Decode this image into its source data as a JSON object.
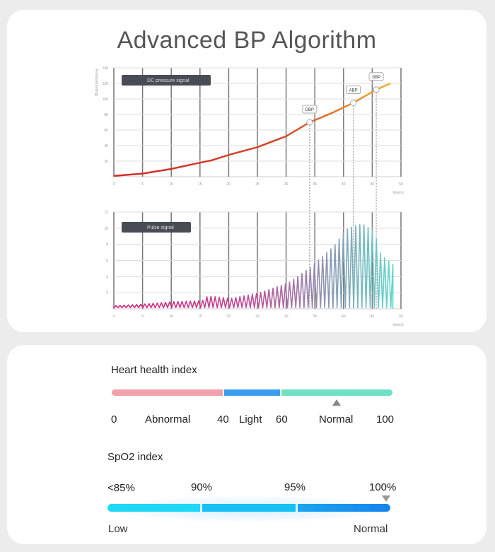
{
  "title": "Advanced BP Algorithm",
  "chart_data": [
    {
      "type": "line",
      "name": "pressure",
      "legend": "DC pressure signal",
      "ylabel": "Pressure(mmHg)",
      "xlabel": "time(s)",
      "xlim": [
        0,
        50
      ],
      "ylim": [
        0,
        140
      ],
      "xticks": [
        0,
        5,
        10,
        15,
        20,
        25,
        30,
        35,
        40,
        45,
        50
      ],
      "yticks": [
        20,
        40,
        60,
        80,
        100,
        120,
        140
      ],
      "grid": true,
      "legend_position": "top-left",
      "x": [
        0,
        5,
        10,
        15,
        17,
        20,
        25,
        30,
        34.1,
        38,
        41.7,
        45.7,
        48.2
      ],
      "y": [
        1,
        4,
        10,
        18,
        21,
        28,
        38,
        52,
        70,
        82,
        95,
        112,
        120
      ],
      "markers": [
        {
          "label": "DBP",
          "t": 34.1,
          "value": 70
        },
        {
          "label": "ABP",
          "t": 41.7,
          "value": 95
        },
        {
          "label": "SBP",
          "t": 45.7,
          "value": 112
        }
      ]
    },
    {
      "type": "line",
      "name": "pulse",
      "legend": "Pulse signal",
      "xlabel": "time(s)",
      "xlim": [
        0,
        50
      ],
      "ylim": [
        0,
        12
      ],
      "xticks": [
        0,
        5,
        10,
        15,
        20,
        25,
        30,
        35,
        40,
        45,
        50
      ],
      "yticks": [
        2,
        4,
        6,
        8,
        10,
        12
      ],
      "grid": true,
      "legend_position": "top-left",
      "envelope_t": [
        0,
        5,
        10,
        15,
        16,
        20,
        25,
        30,
        34,
        38,
        40,
        42,
        43,
        45,
        46,
        47,
        48.5
      ],
      "envelope_amp": [
        0.4,
        0.6,
        0.9,
        1.0,
        1.6,
        1.3,
        2.0,
        3.2,
        5.2,
        7.8,
        9.8,
        10.4,
        10.5,
        9.6,
        7.0,
        6.2,
        5.4
      ]
    }
  ],
  "heart": {
    "title": "Heart health index",
    "labels": [
      "0",
      "Abnormal",
      "40",
      "Light",
      "60",
      "Normal",
      "100"
    ],
    "segments": [
      {
        "from": 0,
        "to": 40,
        "color": "#f3a0ad"
      },
      {
        "from": 40,
        "to": 60,
        "color": "#3b9df0"
      },
      {
        "from": 60,
        "to": 100,
        "color": "#6fe0c4"
      }
    ],
    "marker_value": 80
  },
  "spo2": {
    "title": "SpO2 index",
    "ticks": [
      "<85%",
      "90%",
      "95%",
      "100%"
    ],
    "low_label": "Low",
    "normal_label": "Normal",
    "marker_percent": 100
  }
}
